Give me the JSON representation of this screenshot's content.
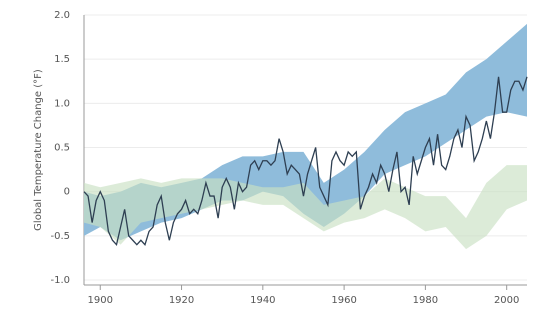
{
  "chart_data": {
    "type": "line",
    "ylabel": "Global Temperature Change (°F)",
    "xlim": [
      1896,
      2005
    ],
    "xticks": [
      1900,
      1920,
      1940,
      1960,
      1980,
      2000
    ],
    "ylim": [
      -1.0,
      2.0
    ],
    "yticks": [
      {
        "value": -1.0,
        "label": "-1.0"
      },
      -0.5,
      0,
      0.5,
      {
        "value": 1.0,
        "label": "1.0"
      },
      1.5,
      {
        "value": 2.0,
        "label": "2.0"
      }
    ],
    "grid": true,
    "x": [
      1896,
      1897,
      1898,
      1899,
      1900,
      1901,
      1902,
      1903,
      1904,
      1905,
      1906,
      1907,
      1908,
      1909,
      1910,
      1911,
      1912,
      1913,
      1914,
      1915,
      1916,
      1917,
      1918,
      1919,
      1920,
      1921,
      1922,
      1923,
      1924,
      1925,
      1926,
      1927,
      1928,
      1929,
      1930,
      1931,
      1932,
      1933,
      1934,
      1935,
      1936,
      1937,
      1938,
      1939,
      1940,
      1941,
      1942,
      1943,
      1944,
      1945,
      1946,
      1947,
      1948,
      1949,
      1950,
      1951,
      1952,
      1953,
      1954,
      1955,
      1956,
      1957,
      1958,
      1959,
      1960,
      1961,
      1962,
      1963,
      1964,
      1965,
      1966,
      1967,
      1968,
      1969,
      1970,
      1971,
      1972,
      1973,
      1974,
      1975,
      1976,
      1977,
      1978,
      1979,
      1980,
      1981,
      1982,
      1983,
      1984,
      1985,
      1986,
      1987,
      1988,
      1989,
      1990,
      1991,
      1992,
      1993,
      1994,
      1995,
      1996,
      1997,
      1998,
      1999,
      2000,
      2001,
      2002,
      2003,
      2004,
      2005
    ],
    "series": [
      {
        "color": "#2e3f52",
        "values": [
          0.0,
          -0.05,
          -0.35,
          -0.1,
          0.0,
          -0.1,
          -0.45,
          -0.55,
          -0.6,
          -0.4,
          -0.2,
          -0.5,
          -0.55,
          -0.6,
          -0.55,
          -0.6,
          -0.45,
          -0.4,
          -0.15,
          -0.05,
          -0.35,
          -0.55,
          -0.35,
          -0.25,
          -0.2,
          -0.1,
          -0.25,
          -0.2,
          -0.25,
          -0.1,
          0.1,
          -0.05,
          -0.05,
          -0.3,
          0.05,
          0.15,
          0.05,
          -0.2,
          0.1,
          0.0,
          0.05,
          0.3,
          0.35,
          0.25,
          0.35,
          0.35,
          0.3,
          0.35,
          0.6,
          0.45,
          0.2,
          0.3,
          0.25,
          0.2,
          -0.05,
          0.2,
          0.35,
          0.5,
          0.05,
          -0.05,
          -0.15,
          0.35,
          0.45,
          0.35,
          0.3,
          0.45,
          0.4,
          0.45,
          -0.2,
          -0.05,
          0.05,
          0.2,
          0.1,
          0.3,
          0.2,
          0.0,
          0.25,
          0.45,
          0.0,
          0.05,
          -0.15,
          0.4,
          0.2,
          0.35,
          0.5,
          0.6,
          0.3,
          0.65,
          0.3,
          0.25,
          0.4,
          0.6,
          0.7,
          0.5,
          0.85,
          0.75,
          0.35,
          0.45,
          0.6,
          0.8,
          0.6,
          0.9,
          1.3,
          0.9,
          0.9,
          1.15,
          1.25,
          1.25,
          1.15,
          1.3
        ]
      }
    ],
    "band_x": [
      1896,
      1900,
      1905,
      1910,
      1915,
      1920,
      1925,
      1930,
      1935,
      1940,
      1945,
      1950,
      1955,
      1960,
      1965,
      1970,
      1975,
      1980,
      1985,
      1990,
      1995,
      2000,
      2005
    ],
    "bands": [
      {
        "color": "#8fbcdb",
        "lower": [
          -0.5,
          -0.4,
          -0.55,
          -0.45,
          -0.35,
          -0.3,
          -0.2,
          -0.1,
          -0.1,
          0.0,
          -0.05,
          -0.25,
          -0.4,
          -0.25,
          -0.05,
          0.2,
          0.3,
          0.4,
          0.55,
          0.7,
          0.85,
          0.9,
          0.85
        ],
        "upper": [
          0.0,
          -0.05,
          0.0,
          0.1,
          0.05,
          0.1,
          0.15,
          0.3,
          0.4,
          0.4,
          0.45,
          0.45,
          0.1,
          0.25,
          0.45,
          0.7,
          0.9,
          1.0,
          1.1,
          1.35,
          1.5,
          1.7,
          1.9
        ]
      },
      {
        "color": "#c9e0c3",
        "lower": [
          -0.35,
          -0.4,
          -0.6,
          -0.35,
          -0.3,
          -0.25,
          -0.2,
          -0.15,
          -0.1,
          -0.15,
          -0.15,
          -0.3,
          -0.45,
          -0.35,
          -0.3,
          -0.2,
          -0.3,
          -0.45,
          -0.4,
          -0.65,
          -0.5,
          -0.2,
          -0.1
        ],
        "upper": [
          0.1,
          0.05,
          0.1,
          0.15,
          0.1,
          0.15,
          0.15,
          0.15,
          0.1,
          0.05,
          0.05,
          0.1,
          -0.15,
          -0.1,
          -0.05,
          0.15,
          0.05,
          -0.05,
          -0.05,
          -0.3,
          0.1,
          0.3,
          0.3
        ]
      }
    ]
  }
}
